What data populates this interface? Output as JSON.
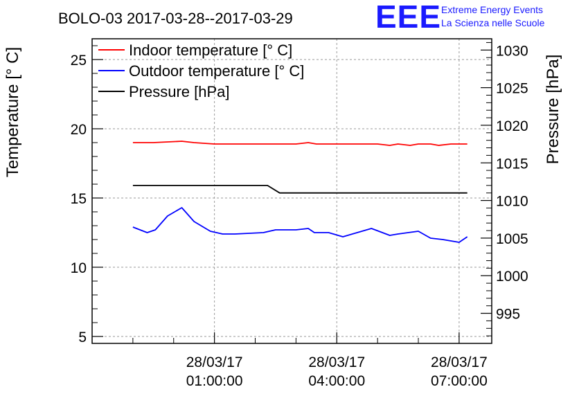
{
  "chart_data": {
    "type": "line",
    "title": "BOLO-03 2017-03-28--2017-03-29",
    "ylabel": "Temperature [° C]",
    "y2label": "Pressure [hPa]",
    "xlabel": "",
    "ylim": [
      4.5,
      26.5
    ],
    "y2lim": [
      991,
      1031.5
    ],
    "xlim_hours": [
      -2.0,
      7.8
    ],
    "grid": true,
    "legend_position": "top-left",
    "y_ticks": [
      5,
      10,
      15,
      20,
      25
    ],
    "y2_ticks": [
      995,
      1000,
      1005,
      1010,
      1015,
      1020,
      1025,
      1030
    ],
    "x_ticks": [
      {
        "hour": 1,
        "date": "28/03/17",
        "time": "01:00:00"
      },
      {
        "hour": 4,
        "date": "28/03/17",
        "time": "04:00:00"
      },
      {
        "hour": 7,
        "date": "28/03/17",
        "time": "07:00:00"
      }
    ],
    "series": [
      {
        "name": "Indoor temperature [° C]",
        "color": "#ff0000",
        "axis": "left",
        "x": [
          -1.0,
          -0.5,
          0.2,
          0.5,
          1.0,
          2.0,
          3.0,
          3.3,
          3.5,
          4.0,
          5.0,
          5.3,
          5.5,
          5.8,
          6.0,
          6.3,
          6.5,
          6.8,
          7.0,
          7.2
        ],
        "values": [
          19.0,
          19.0,
          19.1,
          19.0,
          18.9,
          18.9,
          18.9,
          19.0,
          18.9,
          18.9,
          18.9,
          18.8,
          18.9,
          18.8,
          18.9,
          18.9,
          18.8,
          18.9,
          18.9,
          18.9
        ]
      },
      {
        "name": "Outdoor temperature [° C]",
        "color": "#0000ff",
        "axis": "left",
        "x": [
          -1.0,
          -0.65,
          -0.45,
          -0.15,
          0.2,
          0.5,
          0.9,
          1.2,
          1.5,
          2.2,
          2.5,
          3.0,
          3.3,
          3.45,
          3.8,
          4.15,
          4.5,
          4.85,
          5.3,
          5.5,
          6.0,
          6.3,
          6.6,
          7.0,
          7.2
        ],
        "values": [
          12.9,
          12.5,
          12.7,
          13.7,
          14.3,
          13.3,
          12.6,
          12.4,
          12.4,
          12.5,
          12.7,
          12.7,
          12.8,
          12.5,
          12.5,
          12.2,
          12.5,
          12.8,
          12.3,
          12.4,
          12.6,
          12.1,
          12.0,
          11.8,
          12.2
        ]
      },
      {
        "name": "Pressure [hPa]",
        "color": "#000000",
        "axis": "right",
        "x": [
          -1.0,
          2.3,
          2.6,
          7.2
        ],
        "values": [
          1012,
          1012,
          1011,
          1011
        ]
      }
    ]
  },
  "logo": {
    "mark": "EEE",
    "line1": "Extreme Energy Events",
    "line2": "La Scienza nelle Scuole"
  }
}
